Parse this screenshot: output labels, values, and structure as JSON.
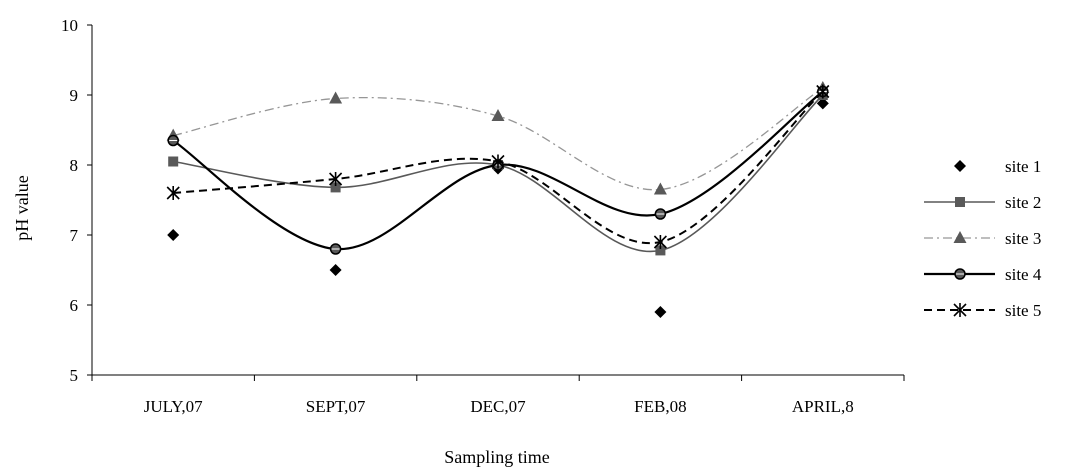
{
  "chart_data": {
    "type": "line",
    "title": "",
    "xlabel": "Sampling time",
    "ylabel": "pH value",
    "categories": [
      "JULY,07",
      "SEPT,07",
      "DEC,07",
      "FEB,08",
      "APRIL,8"
    ],
    "ylim": [
      5,
      10
    ],
    "yticks": [
      5,
      6,
      7,
      8,
      9,
      10
    ],
    "grid": false,
    "legend_position": "right",
    "series": [
      {
        "name": "site 1",
        "values": [
          7.0,
          6.5,
          7.95,
          5.9,
          8.88
        ],
        "marker": "diamond",
        "line": "none",
        "color": "#000000"
      },
      {
        "name": "site 2",
        "values": [
          8.05,
          7.68,
          8.0,
          6.78,
          9.0
        ],
        "marker": "square",
        "line": "solid",
        "color": "#595959"
      },
      {
        "name": "site 3",
        "values": [
          8.42,
          8.95,
          8.7,
          7.65,
          9.1
        ],
        "marker": "triangle",
        "line": "dash-dot",
        "color": "#969696"
      },
      {
        "name": "site 4",
        "values": [
          8.35,
          6.8,
          8.0,
          7.3,
          9.05
        ],
        "marker": "circle-cross",
        "line": "solid-thick",
        "color": "#000000"
      },
      {
        "name": "site 5",
        "values": [
          7.6,
          7.8,
          8.05,
          6.9,
          9.05
        ],
        "marker": "asterisk",
        "line": "dashed",
        "color": "#000000"
      }
    ]
  }
}
